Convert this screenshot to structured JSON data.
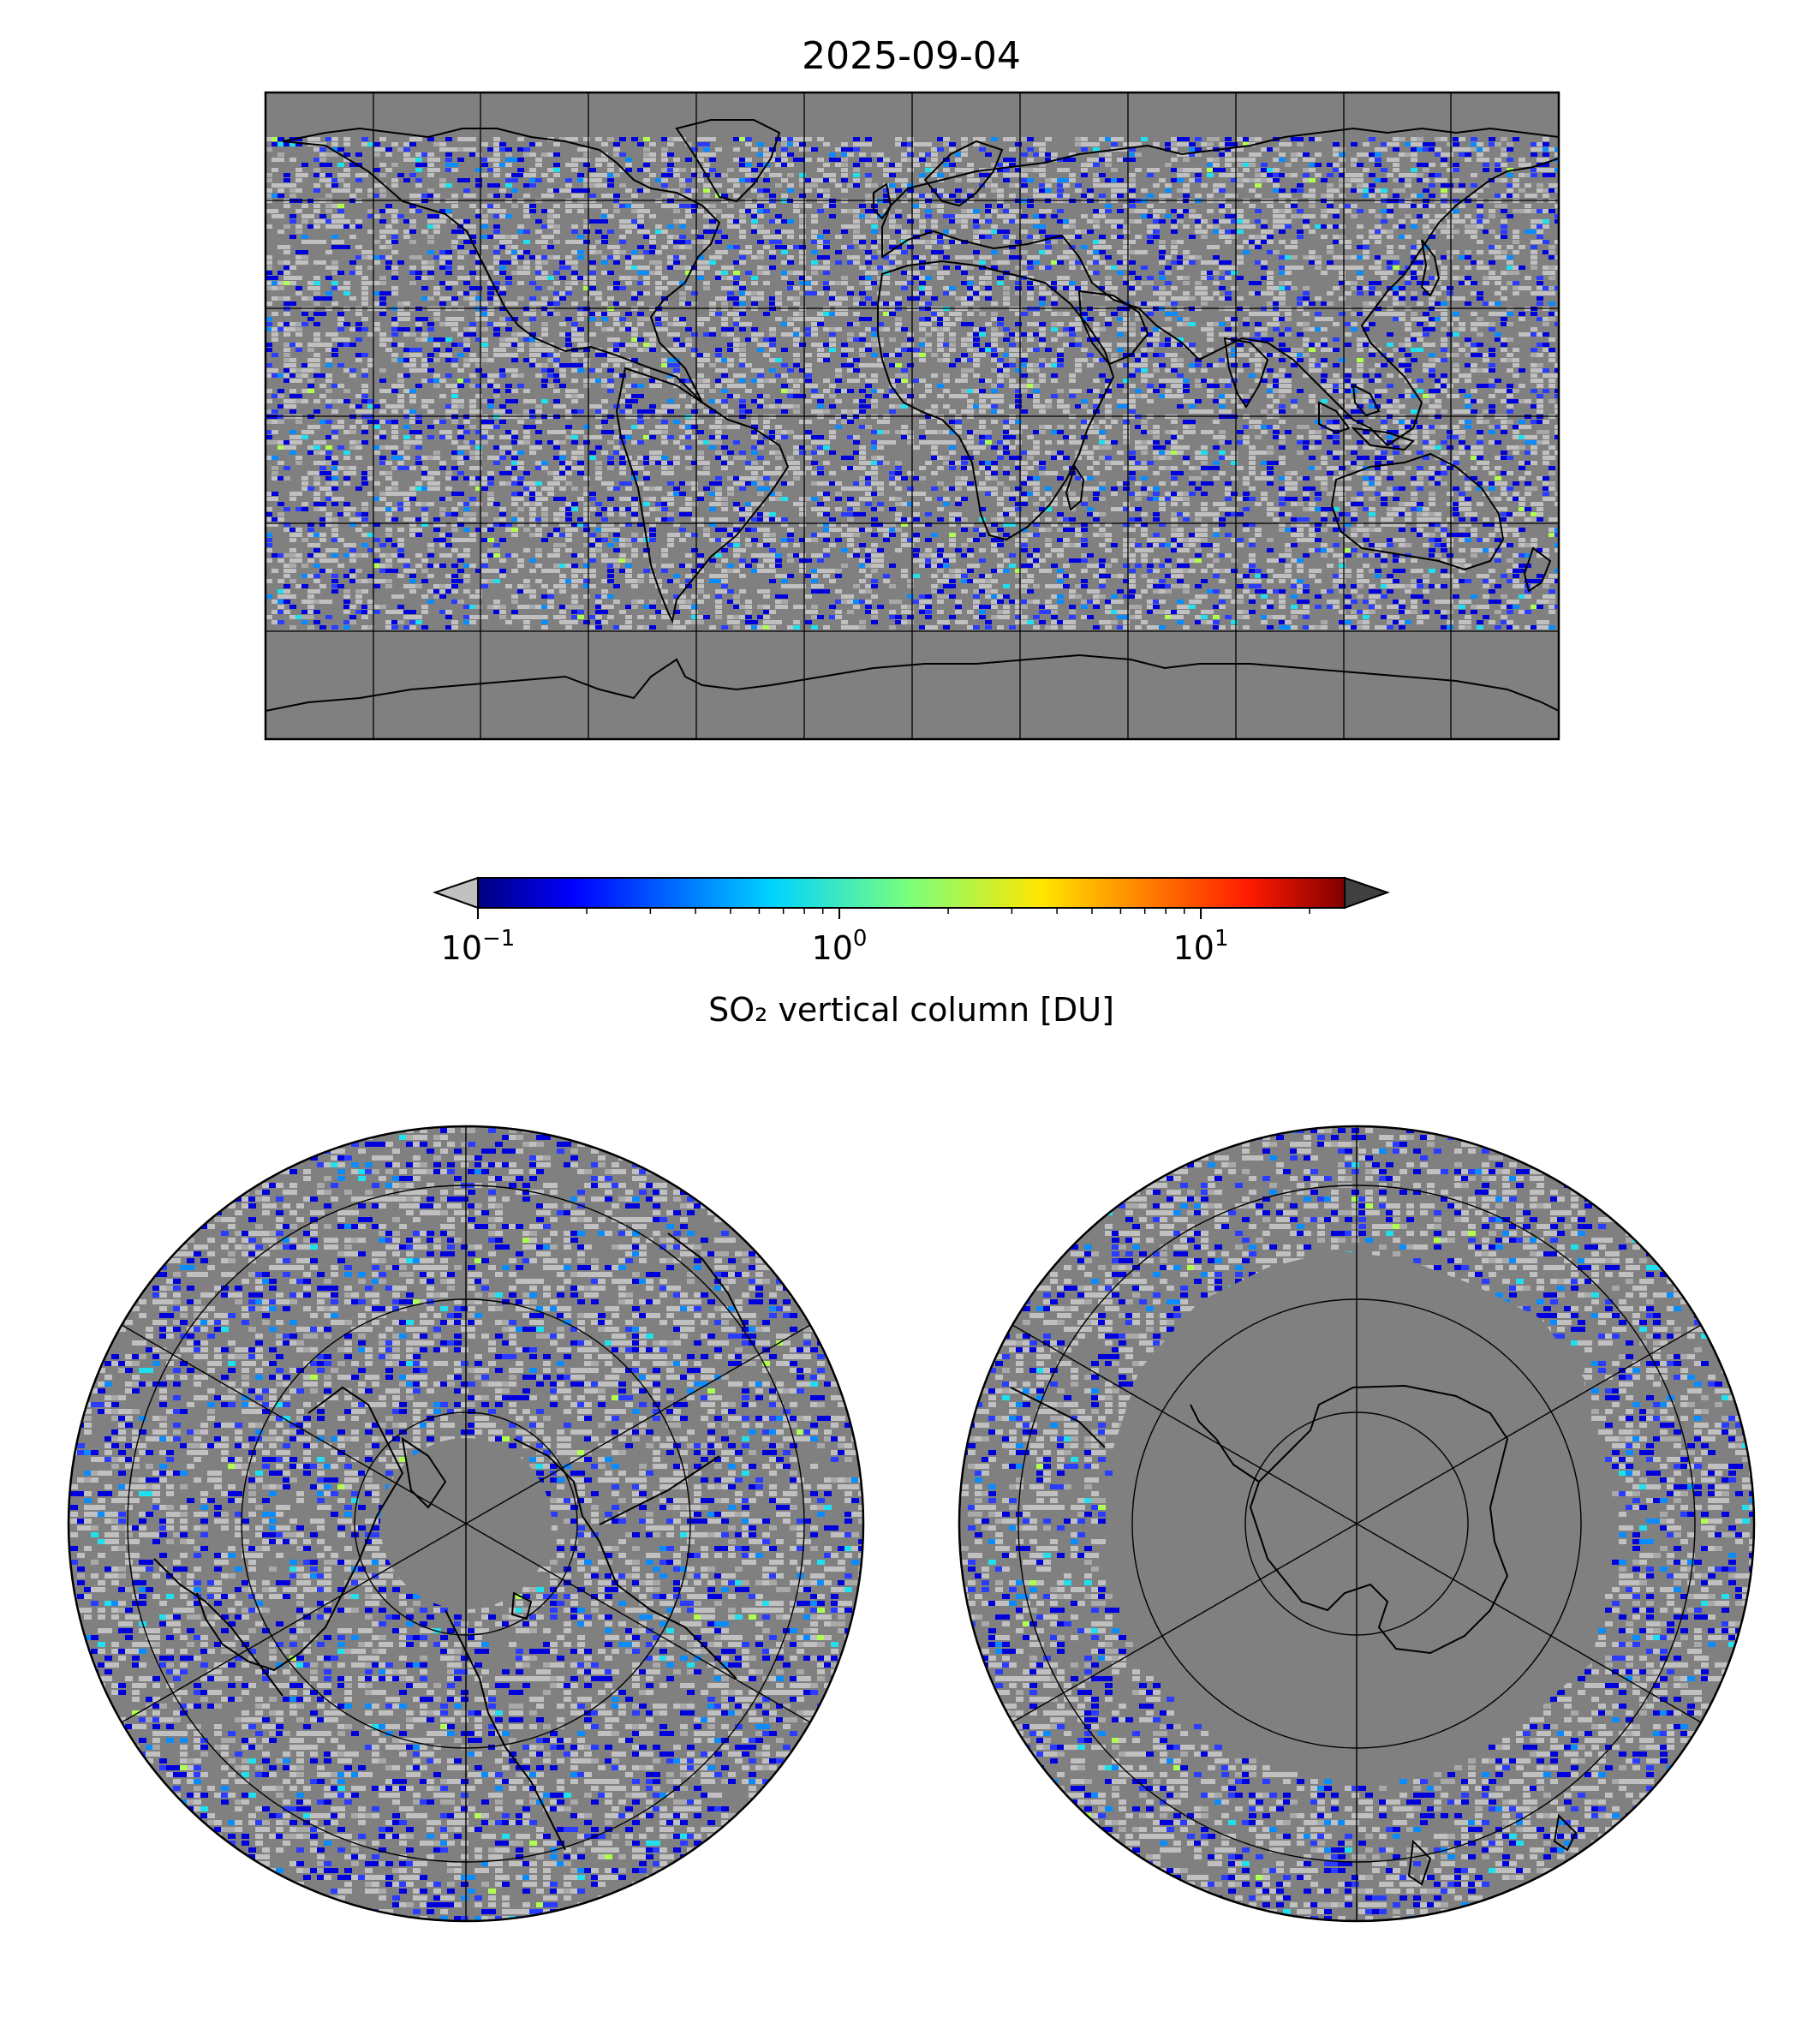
{
  "title": "2025-09-04",
  "colorbar": {
    "label": "SO₂ vertical column [DU]",
    "scale": "log",
    "vmin": 0.1,
    "vmax": 25,
    "colormap": "jet",
    "extend": "both",
    "under_color": "#c0c0c0",
    "over_color": "#404040",
    "ticks": [
      {
        "value": 0.1,
        "base": "10",
        "exp": "−1"
      },
      {
        "value": 1,
        "base": "10",
        "exp": "0"
      },
      {
        "value": 10,
        "base": "10",
        "exp": "1"
      }
    ]
  },
  "colors": {
    "missing": "#808080",
    "below_range": "#c0c0c0",
    "coastline": "#000000",
    "gridline": "#000000"
  },
  "maps": {
    "global": {
      "projection": "plate carree",
      "lon_range": [
        -180,
        180
      ],
      "lat_range": [
        -90,
        90
      ],
      "meridian_step_deg": 30,
      "parallel_step_deg": 30
    },
    "north_polar": {
      "projection": "north polar stereographic",
      "hemisphere": "north",
      "parallels_deg": [
        80,
        70,
        60,
        50,
        40
      ]
    },
    "south_polar": {
      "projection": "south polar stereographic",
      "hemisphere": "south",
      "parallels_deg": [
        -80,
        -70,
        -60,
        -50,
        -40
      ]
    }
  }
}
